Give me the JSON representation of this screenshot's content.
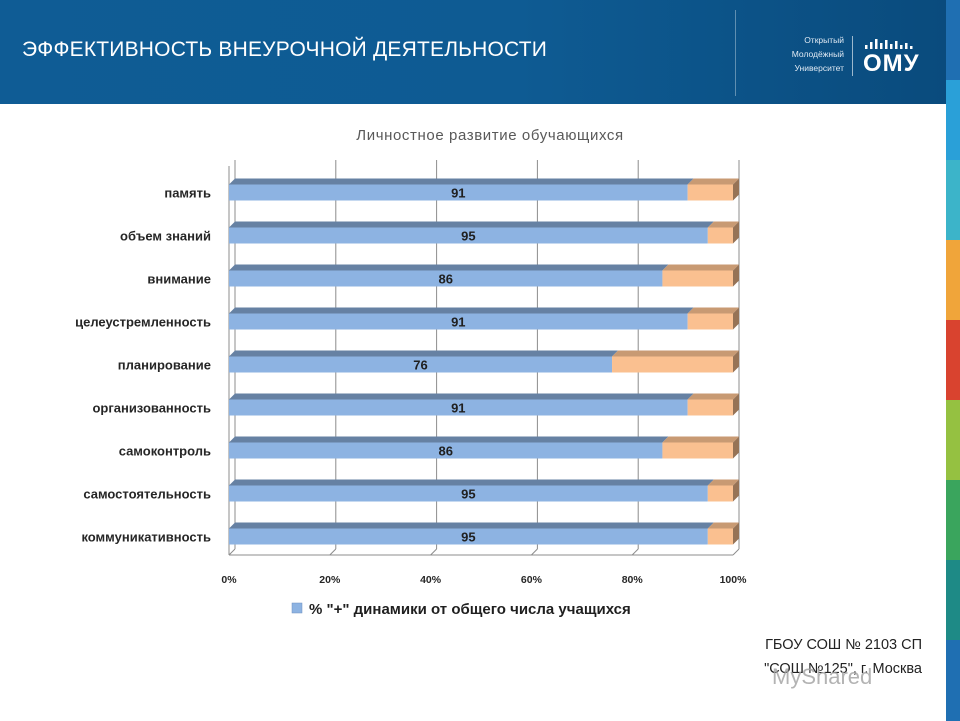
{
  "header": {
    "title": "ЭФФЕКТИВНОСТЬ ВНЕУРОЧНОЙ ДЕЯТЕЛЬНОСТИ",
    "logo": {
      "lines": [
        "Открытый",
        "Молодёжный",
        "Университет"
      ],
      "abbr": "ОМУ",
      "icon": "signal-bars-icon"
    },
    "background": "#0f5c95"
  },
  "side_stripe_colors": [
    "#1f6fb2",
    "#2aa0d8",
    "#3cb4c9",
    "#f0a53a",
    "#d9432f",
    "#95c141",
    "#3aa55d",
    "#1e8a86",
    "#1f6fb2"
  ],
  "chart_data": {
    "type": "bar",
    "orientation": "horizontal",
    "stacked": "percent",
    "title": "Личностное развитие обучающихся",
    "categories": [
      "память",
      "объем знаний",
      "внимание",
      "целеустремленность",
      "планирование",
      "организованность",
      "самоконтроль",
      "самостоятельность",
      "коммуникативность"
    ],
    "series": [
      {
        "name": "% \"+\" динамики от общего числа учащихся",
        "values": [
          91,
          95,
          86,
          91,
          76,
          91,
          86,
          95,
          95
        ],
        "color": "#8db3e2"
      },
      {
        "values": [
          9,
          5,
          14,
          9,
          24,
          9,
          14,
          5,
          5
        ],
        "color": "#fac090"
      }
    ],
    "data_labels": [
      "91",
      "95",
      "86",
      "91",
      "76",
      "91",
      "86",
      "95",
      "95"
    ],
    "x_ticks": [
      "0%",
      "20%",
      "40%",
      "60%",
      "80%",
      "100%"
    ],
    "xlim": [
      0,
      100
    ],
    "grid": true,
    "legend": "bottom"
  },
  "footer": {
    "line1": "ГБОУ СОШ № 2103 СП",
    "line2": "\"СОШ №125\", г. Москва"
  },
  "watermark": "MyShared"
}
